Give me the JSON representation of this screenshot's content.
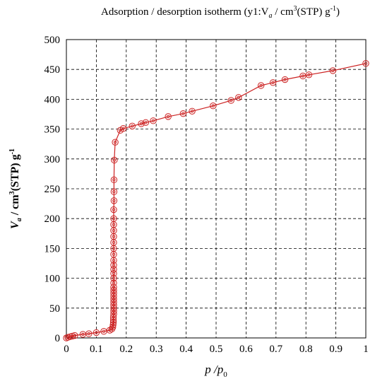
{
  "chart_data": {
    "type": "line",
    "title": "Adsorption / desorption isotherm (y1:V",
    "title_sub": "a",
    "title_mid": " / cm",
    "title_sup1": "3",
    "title_mid2": "(STP) g",
    "title_sup2": "-1",
    "title_end": ")",
    "xlabel": "p",
    "xlabel_mid": " /p",
    "xlabel_sub": "0",
    "ylabel": "V",
    "ylabel_sub": "a",
    "ylabel_mid": " / cm",
    "ylabel_sup1": "3",
    "ylabel_mid2": "(STP) g",
    "ylabel_sup2": "-1",
    "xlim": [
      0,
      1
    ],
    "ylim": [
      0,
      500
    ],
    "xticks": [
      "0",
      "0.1",
      "0.2",
      "0.3",
      "0.4",
      "0.5",
      "0.6",
      "0.7",
      "0.8",
      "0.9",
      "1"
    ],
    "yticks": [
      "0",
      "50",
      "100",
      "150",
      "200",
      "250",
      "300",
      "350",
      "400",
      "450",
      "500"
    ],
    "grid": true,
    "color": "#cc2222",
    "marker": "double-circle",
    "series": [
      {
        "points": [
          [
            0.0,
            0
          ],
          [
            0.005,
            1
          ],
          [
            0.012,
            2
          ],
          [
            0.02,
            3
          ],
          [
            0.028,
            4
          ],
          [
            0.055,
            6
          ],
          [
            0.075,
            7
          ],
          [
            0.1,
            9
          ],
          [
            0.125,
            11
          ],
          [
            0.145,
            13
          ],
          [
            0.152,
            15
          ],
          [
            0.155,
            18
          ],
          [
            0.156,
            22
          ],
          [
            0.157,
            26
          ],
          [
            0.157,
            30
          ],
          [
            0.157,
            35
          ],
          [
            0.158,
            40
          ],
          [
            0.158,
            45
          ],
          [
            0.158,
            50
          ],
          [
            0.158,
            55
          ],
          [
            0.158,
            60
          ],
          [
            0.158,
            65
          ],
          [
            0.158,
            70
          ],
          [
            0.158,
            75
          ],
          [
            0.158,
            80
          ],
          [
            0.158,
            85
          ],
          [
            0.158,
            92
          ],
          [
            0.158,
            100
          ],
          [
            0.158,
            108
          ],
          [
            0.158,
            115
          ],
          [
            0.158,
            122
          ],
          [
            0.158,
            130
          ],
          [
            0.158,
            140
          ],
          [
            0.158,
            150
          ],
          [
            0.158,
            160
          ],
          [
            0.158,
            170
          ],
          [
            0.158,
            180
          ],
          [
            0.158,
            190
          ],
          [
            0.158,
            200
          ],
          [
            0.158,
            215
          ],
          [
            0.159,
            230
          ],
          [
            0.159,
            245
          ],
          [
            0.159,
            265
          ],
          [
            0.16,
            298
          ],
          [
            0.163,
            328
          ],
          [
            0.18,
            348
          ],
          [
            0.19,
            351
          ],
          [
            0.22,
            355
          ],
          [
            0.25,
            359
          ],
          [
            0.265,
            361
          ],
          [
            0.29,
            364
          ],
          [
            0.34,
            371
          ],
          [
            0.39,
            376
          ],
          [
            0.42,
            380
          ],
          [
            0.49,
            389
          ],
          [
            0.55,
            398
          ],
          [
            0.575,
            403
          ],
          [
            0.65,
            423
          ],
          [
            0.69,
            428
          ],
          [
            0.73,
            433
          ],
          [
            0.79,
            439
          ],
          [
            0.81,
            441
          ],
          [
            0.89,
            448
          ],
          [
            1.0,
            460
          ]
        ]
      }
    ]
  }
}
